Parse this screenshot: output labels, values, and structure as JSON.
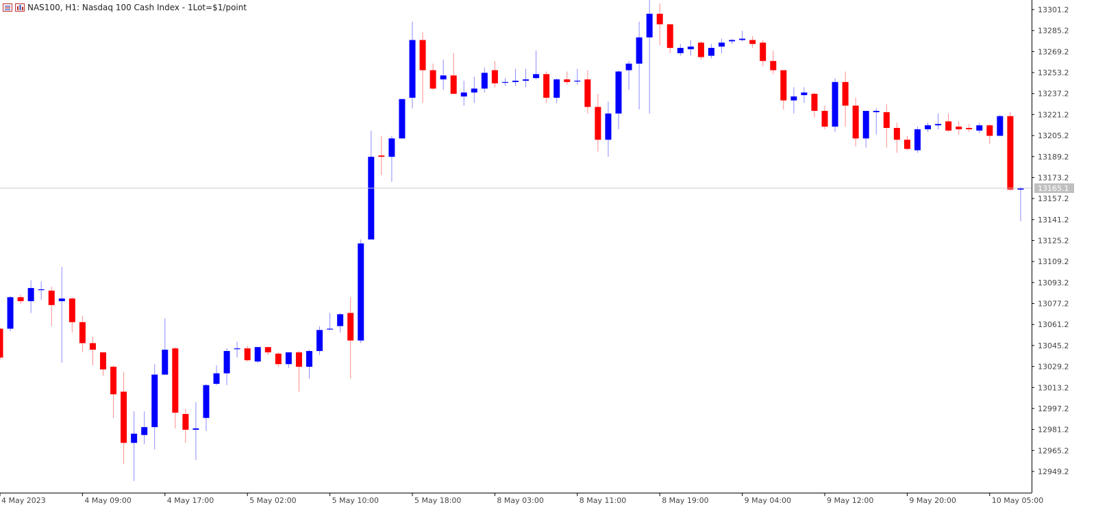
{
  "header": {
    "symbol_text": "NAS100, H1:  Nasdaq 100 Cash Index - 1Lot=$1/point",
    "icons": [
      "chart-list-icon",
      "chart-bars-icon"
    ]
  },
  "colors": {
    "bull": "#0000ff",
    "bear": "#ff0000",
    "bull_wick": "#8a8aff",
    "bear_wick": "#ff8a8a",
    "grid_line": "#c8c8c8",
    "price_tag_bg": "#c0c0c0",
    "axis": "#000000"
  },
  "chart_data": {
    "type": "candlestick",
    "title": "NAS100, H1:  Nasdaq 100 Cash Index - 1Lot=$1/point",
    "symbol": "NAS100",
    "timeframe": "H1",
    "y_ticks": [
      "13301.2",
      "13285.2",
      "13269.2",
      "13253.2",
      "13237.2",
      "13221.2",
      "13205.2",
      "13189.2",
      "13173.2",
      "13157.2",
      "13141.2",
      "13125.2",
      "13109.2",
      "13093.2",
      "13077.2",
      "13061.2",
      "13045.2",
      "13029.2",
      "13013.2",
      "12997.2",
      "12981.2",
      "12965.2",
      "12949.2"
    ],
    "x_ticks": [
      "4 May 2023",
      "4 May 09:00",
      "4 May 17:00",
      "5 May 02:00",
      "5 May 10:00",
      "5 May 18:00",
      "8 May 03:00",
      "8 May 11:00",
      "8 May 19:00",
      "9 May 04:00",
      "9 May 12:00",
      "9 May 20:00",
      "10 May 05:00"
    ],
    "current_price": "13165.1",
    "ylim": [
      12937.2,
      13305.2
    ],
    "grid": false,
    "candles": [
      [
        13058,
        13036,
        13059,
        13034
      ],
      [
        13058,
        13082,
        13083,
        13056
      ],
      [
        13082,
        13079,
        13084,
        13077
      ],
      [
        13079,
        13089,
        13095,
        13070
      ],
      [
        13088,
        13088,
        13094,
        13080
      ],
      [
        13087,
        13076,
        13090,
        13060
      ],
      [
        13079,
        13081,
        13105,
        13032
      ],
      [
        13081,
        13063,
        13082,
        13055
      ],
      [
        13063,
        13047,
        13068,
        13040
      ],
      [
        13047,
        13042,
        13052,
        13030
      ],
      [
        13040,
        13027,
        13040,
        13022
      ],
      [
        13029,
        13008,
        13030,
        12990
      ],
      [
        13010,
        12971,
        13025,
        12955
      ],
      [
        12971,
        12978,
        12995,
        12942
      ],
      [
        12977,
        12983,
        12995,
        12970
      ],
      [
        12983,
        13023,
        13031,
        12966
      ],
      [
        13023,
        13042,
        13066,
        13025
      ],
      [
        13043,
        12994,
        13044,
        12982
      ],
      [
        12993,
        12981,
        12997,
        12971
      ],
      [
        12981,
        12982,
        13002,
        12958
      ],
      [
        12990,
        13015,
        13016,
        12980
      ],
      [
        13016,
        13024,
        13030,
        13015
      ],
      [
        13024,
        13041,
        13043,
        13015
      ],
      [
        13043,
        13043,
        13048,
        13036
      ],
      [
        13043,
        13034,
        13045,
        13033
      ],
      [
        13033,
        13044,
        13044,
        13032
      ],
      [
        13044,
        13040,
        13044,
        13038
      ],
      [
        13039,
        13031,
        13040,
        13029
      ],
      [
        13031,
        13040,
        13040,
        13028
      ],
      [
        13040,
        13029,
        13041,
        13010
      ],
      [
        13029,
        13041,
        13042,
        13020
      ],
      [
        13041,
        13057,
        13060,
        13038
      ],
      [
        13058,
        13058,
        13070,
        13057
      ],
      [
        13060,
        13069,
        13070,
        13055
      ],
      [
        13070,
        13049,
        13082,
        13020
      ],
      [
        13049,
        13123,
        13126,
        13047
      ],
      [
        13126,
        13189,
        13209,
        13162
      ],
      [
        13190,
        13189,
        13205,
        13175
      ],
      [
        13189,
        13203,
        13205,
        13170
      ],
      [
        13203,
        13233,
        13233,
        13203
      ],
      [
        13234,
        13278,
        13292,
        13226
      ],
      [
        13278,
        13255,
        13284,
        13230
      ],
      [
        13255,
        13241,
        13260,
        13240
      ],
      [
        13248,
        13251,
        13263,
        13240
      ],
      [
        13251,
        13237,
        13268,
        13237
      ],
      [
        13235,
        13238,
        13247,
        13228
      ],
      [
        13238,
        13241,
        13250,
        13230
      ],
      [
        13241,
        13253,
        13257,
        13238
      ],
      [
        13255,
        13245,
        13262,
        13242
      ],
      [
        13246,
        13246,
        13249,
        13243
      ],
      [
        13246,
        13247,
        13256,
        13243
      ],
      [
        13247,
        13248,
        13256,
        13242
      ],
      [
        13249,
        13252,
        13270,
        13248
      ],
      [
        13252,
        13234,
        13254,
        13230
      ],
      [
        13234,
        13248,
        13249,
        13230
      ],
      [
        13248,
        13246,
        13254,
        13244
      ],
      [
        13247,
        13247,
        13256,
        13244
      ],
      [
        13248,
        13227,
        13255,
        13222
      ],
      [
        13227,
        13202,
        13237,
        13193
      ],
      [
        13202,
        13222,
        13231,
        13189
      ],
      [
        13222,
        13254,
        13255,
        13210
      ],
      [
        13255,
        13260,
        13262,
        13240
      ],
      [
        13260,
        13280,
        13292,
        13225
      ],
      [
        13280,
        13298,
        13310,
        13222
      ],
      [
        13298,
        13290,
        13306,
        13274
      ],
      [
        13290,
        13272,
        13290,
        13268
      ],
      [
        13268,
        13272,
        13275,
        13266
      ],
      [
        13271,
        13273,
        13278,
        13266
      ],
      [
        13276,
        13265,
        13277,
        13263
      ],
      [
        13266,
        13272,
        13275,
        13264
      ],
      [
        13273,
        13276,
        13279,
        13268
      ],
      [
        13277,
        13278,
        13279,
        13275
      ],
      [
        13278,
        13279,
        13285,
        13277
      ],
      [
        13278,
        13275,
        13281,
        13272
      ],
      [
        13276,
        13262,
        13278,
        13258
      ],
      [
        13262,
        13255,
        13270,
        13252
      ],
      [
        13255,
        13232,
        13255,
        13225
      ],
      [
        13232,
        13235,
        13242,
        13222
      ],
      [
        13236,
        13238,
        13242,
        13230
      ],
      [
        13237,
        13224,
        13238,
        13219
      ],
      [
        13224,
        13212,
        13228,
        13210
      ],
      [
        13212,
        13246,
        13249,
        13208
      ],
      [
        13246,
        13228,
        13254,
        13212
      ],
      [
        13228,
        13203,
        13234,
        13197
      ],
      [
        13203,
        13224,
        13224,
        13196
      ],
      [
        13223,
        13224,
        13226,
        13206
      ],
      [
        13223,
        13211,
        13229,
        13196
      ],
      [
        13211,
        13202,
        13215,
        13192
      ],
      [
        13202,
        13195,
        13205,
        13194
      ],
      [
        13194,
        13210,
        13212,
        13192
      ],
      [
        13210,
        13213,
        13215,
        13208
      ],
      [
        13213,
        13214,
        13222,
        13210
      ],
      [
        13216,
        13209,
        13222,
        13208
      ],
      [
        13212,
        13210,
        13216,
        13206
      ],
      [
        13211,
        13210,
        13214,
        13208
      ],
      [
        13209,
        13213,
        13215,
        13207
      ],
      [
        13213,
        13205,
        13214,
        13199
      ],
      [
        13205,
        13220,
        13221,
        13205
      ],
      [
        13220,
        13164,
        13223,
        13163
      ],
      [
        13164,
        13165,
        13166,
        13140
      ]
    ]
  }
}
